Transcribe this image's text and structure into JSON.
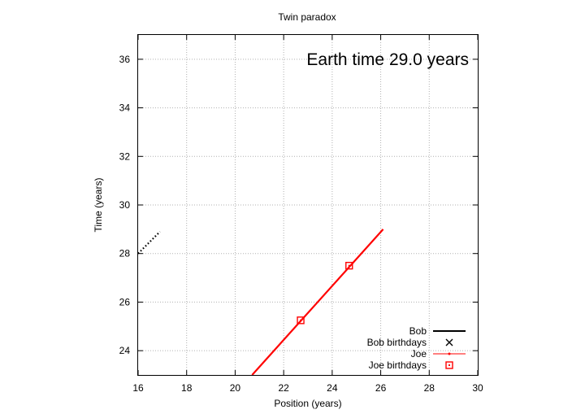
{
  "chart_data": {
    "type": "scatter",
    "title": "Twin paradox",
    "annotation": "Earth time 29.0 years",
    "xlabel": "Position (years)",
    "ylabel": "Time (years)",
    "xlim": [
      16,
      30
    ],
    "ylim": [
      23,
      37
    ],
    "xticks": [
      16,
      18,
      20,
      22,
      24,
      26,
      28,
      30
    ],
    "yticks": [
      24,
      26,
      28,
      30,
      32,
      34,
      36
    ],
    "grid": true,
    "legend_position": "bottom-right",
    "bob_worldline_offsets": [
      12,
      13,
      14,
      15,
      16,
      17,
      18,
      19,
      20,
      21,
      22,
      23,
      24,
      25,
      26,
      27,
      28
    ],
    "bob_worldline_end_time": 28.9,
    "series": [
      {
        "name": "Bob",
        "color": "#000000",
        "style": "dotted diagonal lines",
        "slope": 1
      },
      {
        "name": "Bob birthdays",
        "color": "#000000",
        "marker": "x"
      },
      {
        "name": "Joe",
        "color": "#ff0000",
        "style": "line",
        "x": [
          20.7,
          26.1
        ],
        "y": [
          23.0,
          29.0
        ]
      },
      {
        "name": "Joe birthdays",
        "color": "#ff0000",
        "marker": "square",
        "points": [
          {
            "x": 22.7,
            "y": 25.25
          },
          {
            "x": 24.7,
            "y": 27.5
          }
        ]
      }
    ]
  }
}
